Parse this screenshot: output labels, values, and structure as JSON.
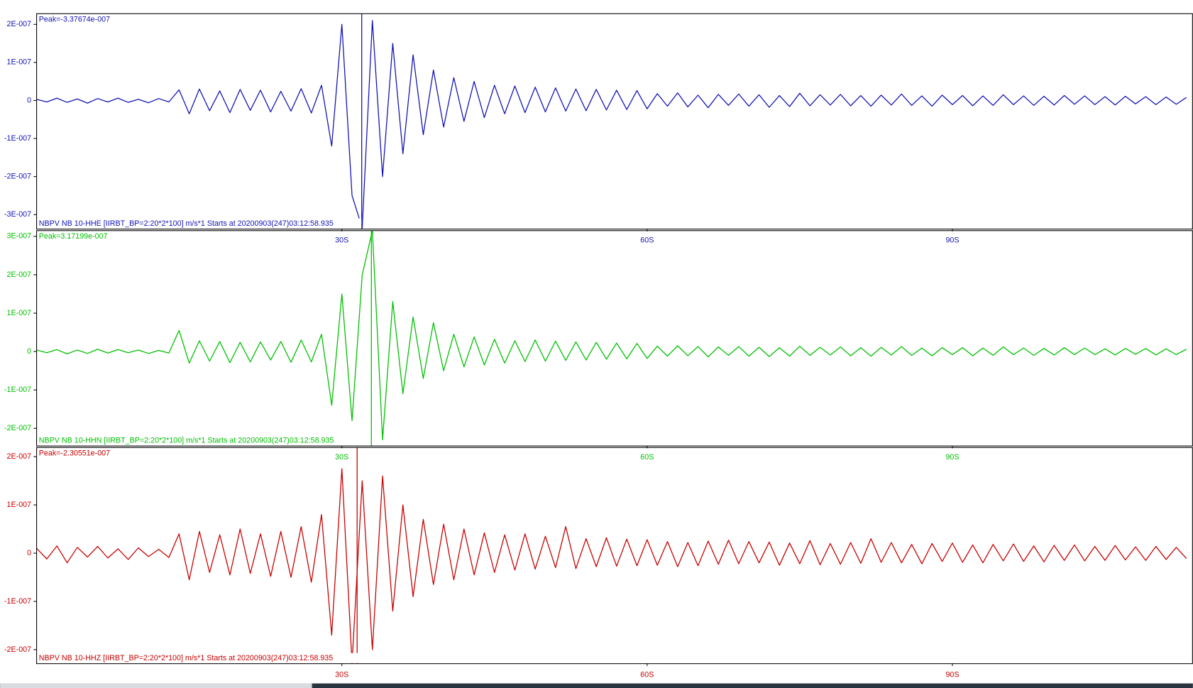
{
  "chart_data": [
    {
      "type": "line",
      "peak_label": "Peak=-3.37674e-007",
      "trace_label": "NBPV NB 10-HHE  [IIRBT_BP=2:20*2*100] m/s*1 Starts at 20200903(247)03:12:58.935",
      "color": "#1414b4",
      "peak_time": 31.95,
      "xlim": [
        0,
        113.6
      ],
      "ylim": [
        -3.38e-07,
        2.28e-07
      ],
      "xticks": [
        {
          "value": 30,
          "label": "30S"
        },
        {
          "value": 60,
          "label": "60S"
        },
        {
          "value": 90,
          "label": "90S"
        }
      ],
      "yticks": [
        {
          "value": 2e-07,
          "label": "2E-007"
        },
        {
          "value": 1e-07,
          "label": "1E-007"
        },
        0,
        {
          "value": -1e-07,
          "label": "-1E-007"
        },
        {
          "value": -2e-07,
          "label": "-2E-007"
        },
        {
          "value": -3e-07,
          "label": "-3E-007"
        }
      ],
      "x": [
        0,
        1,
        2,
        3,
        4,
        5,
        6,
        7,
        8,
        9,
        10,
        11,
        12,
        13,
        14,
        15,
        16,
        17,
        18,
        19,
        20,
        21,
        22,
        23,
        24,
        25,
        26,
        27,
        28,
        29,
        30,
        31,
        32,
        33,
        34,
        35,
        36,
        37,
        38,
        39,
        40,
        41,
        42,
        43,
        44,
        45,
        46,
        47,
        48,
        49,
        50,
        51,
        52,
        53,
        54,
        55,
        56,
        57,
        58,
        59,
        60,
        61,
        62,
        63,
        64,
        65,
        66,
        67,
        68,
        69,
        70,
        71,
        72,
        73,
        74,
        75,
        76,
        77,
        78,
        79,
        80,
        81,
        82,
        83,
        84,
        85,
        86,
        87,
        88,
        89,
        90,
        91,
        92,
        93,
        94,
        95,
        96,
        97,
        98,
        99,
        100,
        101,
        102,
        103,
        104,
        105,
        106,
        107,
        108,
        109,
        110,
        111,
        112,
        113
      ],
      "values": [
        3e-09,
        -4e-09,
        6e-09,
        -5e-09,
        4e-09,
        -7e-09,
        5e-09,
        -4e-09,
        6e-09,
        -5e-09,
        3e-09,
        -6e-09,
        5e-09,
        -4e-09,
        2.8e-08,
        -3.5e-08,
        3e-08,
        -2.7e-08,
        2.5e-08,
        -3.2e-08,
        2.9e-08,
        -2.6e-08,
        2.7e-08,
        -3e-08,
        2.4e-08,
        -2.8e-08,
        3.1e-08,
        -3.3e-08,
        4e-08,
        -1.2e-07,
        2e-07,
        -2.5e-07,
        -3.35e-07,
        2.1e-07,
        -2e-07,
        1.5e-07,
        -1.4e-07,
        1.2e-07,
        -9e-08,
        8e-08,
        -7e-08,
        6e-08,
        -5.5e-08,
        5e-08,
        -4.5e-08,
        4e-08,
        -3.5e-08,
        3.8e-08,
        -3.2e-08,
        3.5e-08,
        -3e-08,
        3.3e-08,
        -2.8e-08,
        3e-08,
        -2.7e-08,
        2.9e-08,
        -2.5e-08,
        2.7e-08,
        -2.4e-08,
        2.6e-08,
        -2.2e-08,
        1.8e-08,
        -1.5e-08,
        2e-08,
        -1.7e-08,
        1.4e-08,
        -1.9e-08,
        1.6e-08,
        -1.3e-08,
        1.7e-08,
        -1.5e-08,
        1.5e-08,
        -1.8e-08,
        1.3e-08,
        -1.6e-08,
        1.9e-08,
        -1.4e-08,
        1.5e-08,
        -1.2e-08,
        1.6e-08,
        -1.4e-08,
        1.3e-08,
        -1.5e-08,
        1.4e-08,
        -1.2e-08,
        1.7e-08,
        -1.3e-08,
        1.2e-08,
        -1.5e-08,
        1.4e-08,
        -1.1e-08,
        1.3e-08,
        -1.4e-08,
        1.2e-08,
        -1.3e-08,
        1.5e-08,
        -1.1e-08,
        1.2e-08,
        -1.3e-08,
        1.1e-08,
        -1.2e-08,
        1.3e-08,
        -1e-08,
        1.2e-08,
        -1.1e-08,
        1e-08,
        -1.2e-08,
        1.1e-08,
        -9e-09,
        1e-08,
        -1.1e-08,
        9e-09,
        -1e-08,
        8e-09
      ]
    },
    {
      "type": "line",
      "peak_label": "Peak=3.17199e-007",
      "trace_label": "NBPV NB 10-HHN  [IIRBT_BP=2:20*2*100] m/s*1 Starts at 20200903(247)03:12:58.935",
      "color": "#00c000",
      "peak_time": 32.9,
      "xlim": [
        0,
        113.6
      ],
      "ylim": [
        -2.46e-07,
        3.15e-07
      ],
      "xticks": [
        {
          "value": 30,
          "label": "30S"
        },
        {
          "value": 60,
          "label": "60S"
        },
        {
          "value": 90,
          "label": "90S"
        }
      ],
      "yticks": [
        {
          "value": 3e-07,
          "label": "3E-007"
        },
        {
          "value": 2e-07,
          "label": "2E-007"
        },
        {
          "value": 1e-07,
          "label": "1E-007"
        },
        0,
        {
          "value": -1e-07,
          "label": "-1E-007"
        },
        {
          "value": -2e-07,
          "label": "-2E-007"
        }
      ],
      "x": [
        0,
        1,
        2,
        3,
        4,
        5,
        6,
        7,
        8,
        9,
        10,
        11,
        12,
        13,
        14,
        15,
        16,
        17,
        18,
        19,
        20,
        21,
        22,
        23,
        24,
        25,
        26,
        27,
        28,
        29,
        30,
        31,
        32,
        33,
        34,
        35,
        36,
        37,
        38,
        39,
        40,
        41,
        42,
        43,
        44,
        45,
        46,
        47,
        48,
        49,
        50,
        51,
        52,
        53,
        54,
        55,
        56,
        57,
        58,
        59,
        60,
        61,
        62,
        63,
        64,
        65,
        66,
        67,
        68,
        69,
        70,
        71,
        72,
        73,
        74,
        75,
        76,
        77,
        78,
        79,
        80,
        81,
        82,
        83,
        84,
        85,
        86,
        87,
        88,
        89,
        90,
        91,
        92,
        93,
        94,
        95,
        96,
        97,
        98,
        99,
        100,
        101,
        102,
        103,
        104,
        105,
        106,
        107,
        108,
        109,
        110,
        111,
        112,
        113
      ],
      "values": [
        4e-09,
        -3e-09,
        5e-09,
        -6e-09,
        4e-09,
        -5e-09,
        6e-09,
        -4e-09,
        5e-09,
        -3e-09,
        4e-09,
        -5e-09,
        3e-09,
        -4e-09,
        5.5e-08,
        -3e-08,
        2.8e-08,
        -2.5e-08,
        2.6e-08,
        -2.9e-08,
        2.4e-08,
        -2.7e-08,
        2.5e-08,
        -2.2e-08,
        2.6e-08,
        -2.8e-08,
        3e-08,
        -2.7e-08,
        4.5e-08,
        -1.4e-07,
        1.5e-07,
        -1.8e-07,
        2e-07,
        3.15e-07,
        -2.3e-07,
        1.3e-07,
        -1.1e-07,
        9e-08,
        -7e-08,
        7.5e-08,
        -5e-08,
        4.5e-08,
        -4e-08,
        3.8e-08,
        -3.5e-08,
        3.2e-08,
        -3e-08,
        2.8e-08,
        -2.6e-08,
        3e-08,
        -2.5e-08,
        2.7e-08,
        -2.3e-08,
        2.5e-08,
        -2.2e-08,
        2.4e-08,
        -2e-08,
        2.2e-08,
        -1.9e-08,
        2.1e-08,
        -1.8e-08,
        1.4e-08,
        -1.2e-08,
        1.5e-08,
        -1.1e-08,
        1.3e-08,
        -1.4e-08,
        1.2e-08,
        -1e-08,
        1.3e-08,
        -1.2e-08,
        1.1e-08,
        -1.3e-08,
        1e-08,
        -1.2e-08,
        1.4e-08,
        -1e-08,
        1.1e-08,
        -9e-09,
        1.2e-08,
        -1.1e-08,
        1e-08,
        -1.2e-08,
        1.1e-08,
        -9e-09,
        1.3e-08,
        -1e-08,
        9e-09,
        -1.1e-08,
        1e-08,
        -8e-09,
        1e-08,
        -1.1e-08,
        9e-09,
        -1e-08,
        1.2e-08,
        -8e-09,
        9e-09,
        -1e-08,
        8e-09,
        -9e-09,
        1e-08,
        -8e-09,
        9e-09,
        -8e-09,
        7e-09,
        -9e-09,
        8e-09,
        -7e-09,
        8e-09,
        -9e-09,
        7e-09,
        -8e-09,
        6e-09
      ]
    },
    {
      "type": "line",
      "peak_label": "Peak=-2.30551e-007",
      "trace_label": "NBPV NB 10-HHZ  [IIRBT_BP=2:20*2*100] m/s*1 Starts at 20200903(247)03:12:58.935",
      "color": "#c80000",
      "peak_time": 31.5,
      "xlim": [
        0,
        113.6
      ],
      "ylim": [
        -2.29e-07,
        2.19e-07
      ],
      "xticks": [
        {
          "value": 30,
          "label": "30S"
        },
        {
          "value": 60,
          "label": "60S"
        },
        {
          "value": 90,
          "label": "90S"
        }
      ],
      "yticks": [
        {
          "value": 2e-07,
          "label": "2E-007"
        },
        {
          "value": 1e-07,
          "label": "1E-007"
        },
        0,
        {
          "value": -1e-07,
          "label": "-1E-007"
        },
        {
          "value": -2e-07,
          "label": "-2E-007"
        }
      ],
      "x": [
        0,
        1,
        2,
        3,
        4,
        5,
        6,
        7,
        8,
        9,
        10,
        11,
        12,
        13,
        14,
        15,
        16,
        17,
        18,
        19,
        20,
        21,
        22,
        23,
        24,
        25,
        26,
        27,
        28,
        29,
        30,
        31,
        32,
        33,
        34,
        35,
        36,
        37,
        38,
        39,
        40,
        41,
        42,
        43,
        44,
        45,
        46,
        47,
        48,
        49,
        50,
        51,
        52,
        53,
        54,
        55,
        56,
        57,
        58,
        59,
        60,
        61,
        62,
        63,
        64,
        65,
        66,
        67,
        68,
        69,
        70,
        71,
        72,
        73,
        74,
        75,
        76,
        77,
        78,
        79,
        80,
        81,
        82,
        83,
        84,
        85,
        86,
        87,
        88,
        89,
        90,
        91,
        92,
        93,
        94,
        95,
        96,
        97,
        98,
        99,
        100,
        101,
        102,
        103,
        104,
        105,
        106,
        107,
        108,
        109,
        110,
        111,
        112,
        113
      ],
      "values": [
        1e-08,
        -1.2e-08,
        1.5e-08,
        -2e-08,
        1.2e-08,
        -8e-09,
        1.4e-08,
        -1e-08,
        9e-09,
        -1.3e-08,
        1.1e-08,
        -7e-09,
        8e-09,
        -9e-09,
        4e-08,
        -5.5e-08,
        4.5e-08,
        -4e-08,
        3.8e-08,
        -4.5e-08,
        5e-08,
        -4.2e-08,
        4e-08,
        -4.8e-08,
        4.5e-08,
        -5e-08,
        5.5e-08,
        -6e-08,
        8e-08,
        -1.7e-07,
        1.75e-07,
        -2.28e-07,
        1.5e-07,
        -2e-07,
        1.6e-07,
        -1.2e-07,
        1e-07,
        -9e-08,
        7e-08,
        -6.5e-08,
        6e-08,
        -5.5e-08,
        5e-08,
        -4.5e-08,
        4.2e-08,
        -4e-08,
        3.8e-08,
        -3.5e-08,
        4e-08,
        -3.3e-08,
        3.5e-08,
        -3e-08,
        5.5e-08,
        -3.2e-08,
        3e-08,
        -2.8e-08,
        3.2e-08,
        -2.7e-08,
        2.9e-08,
        -2.6e-08,
        2.8e-08,
        -2.5e-08,
        2.4e-08,
        -2.8e-08,
        2.2e-08,
        -2.6e-08,
        2.5e-08,
        -2.3e-08,
        2.7e-08,
        -2.2e-08,
        2.4e-08,
        -2e-08,
        2.3e-08,
        -2.5e-08,
        2.1e-08,
        -2.2e-08,
        2.6e-08,
        -2.4e-08,
        2e-08,
        -2.3e-08,
        2.2e-08,
        -2.1e-08,
        3e-08,
        -1.9e-08,
        2.2e-08,
        -2e-08,
        1.8e-08,
        -2.2e-08,
        2e-08,
        -1.7e-08,
        2.1e-08,
        -1.9e-08,
        1.7e-08,
        -2e-08,
        1.8e-08,
        -1.6e-08,
        1.9e-08,
        -1.7e-08,
        1.5e-08,
        -1.8e-08,
        1.6e-08,
        -1.5e-08,
        1.7e-08,
        -1.6e-08,
        1.4e-08,
        -1.5e-08,
        1.6e-08,
        -1.4e-08,
        1.3e-08,
        -1.5e-08,
        1.4e-08,
        -1.3e-08,
        1.2e-08,
        -1.1e-08
      ]
    }
  ]
}
